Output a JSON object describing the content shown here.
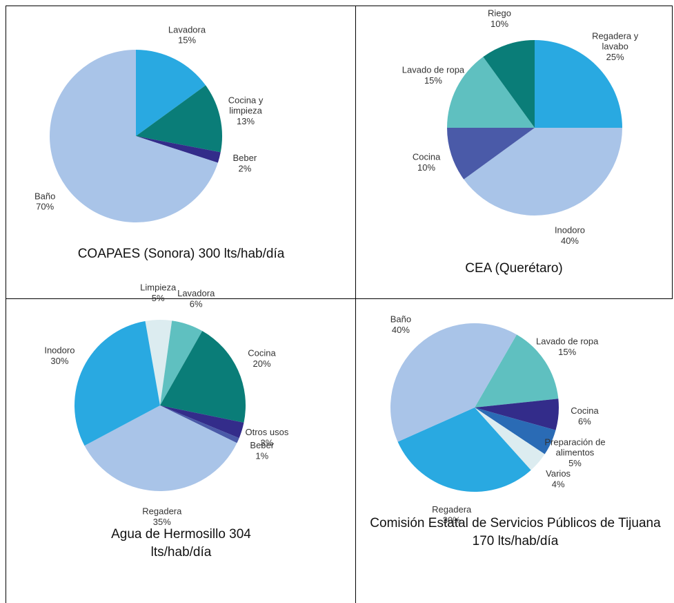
{
  "chart_data": [
    {
      "type": "pie",
      "title": "COAPAES (Sonora) 300 lts/hab/día",
      "categories": [
        "Lavadora",
        "Cocina y limpieza",
        "Beber",
        "Baño"
      ],
      "values": [
        15,
        13,
        2,
        70
      ],
      "value_labels": [
        "15%",
        "13%",
        "2%",
        "70%"
      ],
      "colors": [
        "#29a9e1",
        "#0a7d78",
        "#332c8a",
        "#a9c4e8"
      ]
    },
    {
      "type": "pie",
      "title": "CEA (Querétaro)",
      "categories": [
        "Regadera y lavabo",
        "Inodoro",
        "Cocina",
        "Lavado de ropa",
        "Riego"
      ],
      "values": [
        25,
        40,
        10,
        15,
        10
      ],
      "value_labels": [
        "25%",
        "40%",
        "10%",
        "15%",
        "10%"
      ],
      "colors": [
        "#29a9e1",
        "#a9c4e8",
        "#4a5aa8",
        "#5fc0c0",
        "#0a7d78"
      ]
    },
    {
      "type": "pie",
      "title": "Agua de Hermosillo 304 lts/hab/día",
      "categories": [
        "Limpieza",
        "Lavadora",
        "Cocina",
        "Otros usos",
        "Beber",
        "Regadera",
        "Inodoro"
      ],
      "values": [
        5,
        6,
        20,
        3,
        1,
        35,
        30
      ],
      "value_labels": [
        "5%",
        "6%",
        "20%",
        "3%",
        "1%",
        "35%",
        "30%"
      ],
      "colors": [
        "#dcecf0",
        "#5fc0c0",
        "#0a7d78",
        "#332c8a",
        "#4a5aa8",
        "#a9c4e8",
        "#29a9e1"
      ]
    },
    {
      "type": "pie",
      "title": "Comisión Estatal de Servicios Públicos de Tijuana 170 lts/hab/día",
      "categories": [
        "Lavado de ropa",
        "Cocina",
        "Preparación de alimentos",
        "Varios",
        "Regadera",
        "Baño"
      ],
      "values": [
        15,
        6,
        5,
        4,
        30,
        40
      ],
      "value_labels": [
        "15%",
        "6%",
        "5%",
        "4%",
        "30%",
        "40%"
      ],
      "colors": [
        "#5fc0c0",
        "#332c8a",
        "#2a6bb5",
        "#dcecf0",
        "#29a9e1",
        "#a9c4e8"
      ]
    }
  ]
}
